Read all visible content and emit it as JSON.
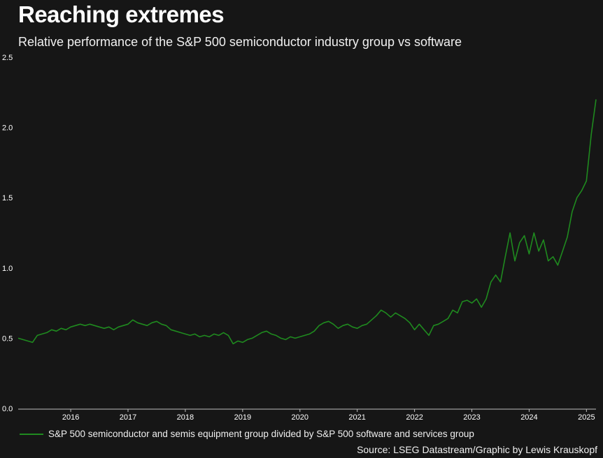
{
  "header": {
    "title": "Reaching extremes",
    "subtitle": "Relative performance of the S&P 500 semiconductor industry group vs software"
  },
  "footer": {
    "source": "Source: LSEG Datastream/Graphic by Lewis Krauskopf"
  },
  "colors": {
    "background": "#161616",
    "line": "#1f8a1f",
    "text": "#ffffff",
    "axis": "#bfbfbf"
  },
  "chart_data": {
    "type": "line",
    "title": "Reaching extremes",
    "subtitle": "Relative performance of the S&P 500 semiconductor industry group vs software",
    "xlabel": "",
    "ylabel": "",
    "ylim": [
      0,
      2.5
    ],
    "xlim": [
      "2015-08",
      "2025-09"
    ],
    "yticks": [
      "0.0",
      "0.5",
      "1.0",
      "1.5",
      "2.0",
      "2.5"
    ],
    "xticks": [
      "2016",
      "2017",
      "2018",
      "2019",
      "2020",
      "2021",
      "2022",
      "2023",
      "2024",
      "2025"
    ],
    "grid": false,
    "legend": "bottom-left",
    "series": [
      {
        "name": "S&P 500 semiconductor and semis equipment group divided by S&P 500 software and services group",
        "color": "#1f8a1f",
        "x": [
          "2015-08",
          "2015-09",
          "2015-10",
          "2015-11",
          "2015-12",
          "2016-01",
          "2016-02",
          "2016-03",
          "2016-04",
          "2016-05",
          "2016-06",
          "2016-07",
          "2016-08",
          "2016-09",
          "2016-10",
          "2016-11",
          "2016-12",
          "2017-01",
          "2017-02",
          "2017-03",
          "2017-04",
          "2017-05",
          "2017-06",
          "2017-07",
          "2017-08",
          "2017-09",
          "2017-10",
          "2017-11",
          "2017-12",
          "2018-01",
          "2018-02",
          "2018-03",
          "2018-04",
          "2018-05",
          "2018-06",
          "2018-07",
          "2018-08",
          "2018-09",
          "2018-10",
          "2018-11",
          "2018-12",
          "2019-01",
          "2019-02",
          "2019-03",
          "2019-04",
          "2019-05",
          "2019-06",
          "2019-07",
          "2019-08",
          "2019-09",
          "2019-10",
          "2019-11",
          "2019-12",
          "2020-01",
          "2020-02",
          "2020-03",
          "2020-04",
          "2020-05",
          "2020-06",
          "2020-07",
          "2020-08",
          "2020-09",
          "2020-10",
          "2020-11",
          "2020-12",
          "2021-01",
          "2021-02",
          "2021-03",
          "2021-04",
          "2021-05",
          "2021-06",
          "2021-07",
          "2021-08",
          "2021-09",
          "2021-10",
          "2021-11",
          "2021-12",
          "2022-01",
          "2022-02",
          "2022-03",
          "2022-04",
          "2022-05",
          "2022-06",
          "2022-07",
          "2022-08",
          "2022-09",
          "2022-10",
          "2022-11",
          "2022-12",
          "2023-01",
          "2023-02",
          "2023-03",
          "2023-04",
          "2023-05",
          "2023-06",
          "2023-07",
          "2023-08",
          "2023-09",
          "2023-10",
          "2023-11",
          "2023-12",
          "2024-01",
          "2024-02",
          "2024-03",
          "2024-04",
          "2024-05",
          "2024-06",
          "2024-07",
          "2024-08",
          "2024-09",
          "2024-10",
          "2024-11",
          "2024-12",
          "2025-01",
          "2025-02",
          "2025-03",
          "2025-04",
          "2025-05",
          "2025-06",
          "2025-07",
          "2025-08",
          "2025-09"
        ],
        "values": [
          0.5,
          0.49,
          0.48,
          0.47,
          0.52,
          0.53,
          0.54,
          0.56,
          0.55,
          0.57,
          0.56,
          0.58,
          0.59,
          0.6,
          0.59,
          0.6,
          0.59,
          0.58,
          0.57,
          0.58,
          0.56,
          0.58,
          0.59,
          0.6,
          0.63,
          0.61,
          0.6,
          0.59,
          0.61,
          0.62,
          0.6,
          0.59,
          0.56,
          0.55,
          0.54,
          0.53,
          0.52,
          0.53,
          0.51,
          0.52,
          0.51,
          0.53,
          0.52,
          0.54,
          0.52,
          0.46,
          0.48,
          0.47,
          0.49,
          0.5,
          0.52,
          0.54,
          0.55,
          0.53,
          0.52,
          0.5,
          0.49,
          0.51,
          0.5,
          0.51,
          0.52,
          0.53,
          0.55,
          0.59,
          0.61,
          0.62,
          0.6,
          0.57,
          0.59,
          0.6,
          0.58,
          0.57,
          0.59,
          0.6,
          0.63,
          0.66,
          0.7,
          0.68,
          0.65,
          0.68,
          0.66,
          0.64,
          0.61,
          0.56,
          0.6,
          0.56,
          0.52,
          0.59,
          0.6,
          0.62,
          0.64,
          0.7,
          0.68,
          0.76,
          0.77,
          0.75,
          0.78,
          0.72,
          0.78,
          0.9,
          0.95,
          0.9,
          1.08,
          1.25,
          1.05,
          1.18,
          1.23,
          1.1,
          1.25,
          1.12,
          1.2,
          1.05,
          1.08,
          1.02,
          1.12,
          1.22,
          1.4,
          1.5,
          1.55,
          1.62,
          1.95,
          2.2
        ]
      }
    ]
  }
}
